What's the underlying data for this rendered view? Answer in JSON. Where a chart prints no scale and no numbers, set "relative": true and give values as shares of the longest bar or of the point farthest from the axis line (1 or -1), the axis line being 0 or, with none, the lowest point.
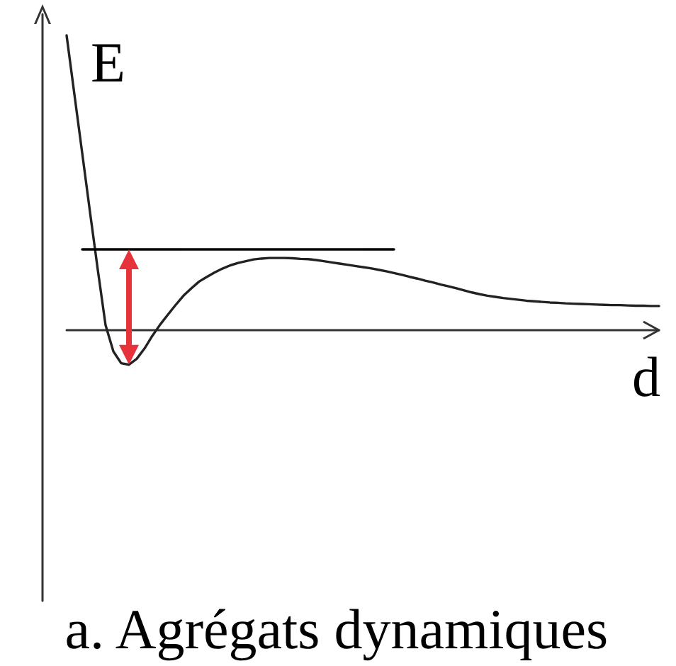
{
  "chart_data": {
    "type": "line",
    "relative": true,
    "xlabel": "d",
    "ylabel": "E",
    "annotations": [
      "a. Agrégats dynamiques"
    ],
    "line_style": "solid",
    "categories": [
      null,
      null,
      null,
      null,
      null,
      null,
      null,
      null,
      null,
      null,
      null,
      null,
      null,
      null,
      null,
      null,
      null,
      null,
      null,
      null,
      null,
      null,
      null,
      null,
      null,
      null,
      null,
      null,
      null,
      null,
      null,
      null,
      null,
      null,
      null,
      null,
      null,
      null,
      null,
      null,
      null,
      null,
      null,
      null,
      null,
      null,
      null,
      null,
      null,
      null,
      null,
      null,
      null,
      null,
      null,
      null,
      null,
      null,
      null,
      null,
      null,
      null,
      null,
      null,
      null,
      null,
      null,
      null,
      null,
      null,
      null,
      null,
      null,
      null,
      null,
      null,
      null
    ],
    "series": [
      {
        "color": "#222222",
        "values": [
          1,
          0.8,
          0.601,
          0.401,
          0.205,
          0.017,
          -0.072,
          -0.112,
          -0.117,
          -0.097,
          -0.062,
          -0.019,
          0.019,
          0.053,
          0.086,
          0.117,
          0.142,
          0.165,
          0.181,
          0.196,
          0.209,
          0.22,
          0.228,
          0.234,
          0.24,
          0.243,
          0.245,
          0.245,
          0.245,
          0.244,
          0.242,
          0.241,
          0.238,
          0.234,
          0.23,
          0.226,
          0.222,
          0.218,
          0.214,
          0.21,
          0.205,
          0.2,
          0.194,
          0.188,
          0.181,
          0.175,
          0.168,
          0.162,
          0.155,
          0.149,
          0.142,
          0.135,
          0.128,
          0.122,
          0.117,
          0.113,
          0.109,
          0.106,
          0.103,
          0.1,
          0.098,
          0.096,
          0.094,
          0.093,
          0.091,
          0.09,
          0.089,
          0.088,
          0.087,
          0.086,
          0.085,
          0.085,
          0.084,
          0.083,
          0.083,
          0.082,
          0.082
        ]
      },
      {
        "color": "#000000",
        "values": [
          null,
          null,
          0.274,
          0.274,
          0.274,
          0.274,
          0.274,
          0.274,
          0.274,
          0.274,
          0.274,
          0.274,
          0.274,
          0.274,
          0.274,
          0.274,
          0.274,
          0.274,
          0.274,
          0.274,
          0.274,
          0.274,
          0.274,
          0.274,
          0.274,
          0.274,
          0.274,
          0.274,
          0.274,
          0.274,
          0.274,
          0.274,
          0.274,
          0.274,
          0.274,
          0.274,
          0.274,
          0.274,
          0.274,
          0.274,
          0.274,
          0.274,
          0.274,
          null,
          null,
          null,
          null,
          null,
          null,
          null,
          null,
          null,
          null,
          null,
          null,
          null,
          null,
          null,
          null,
          null,
          null,
          null,
          null,
          null,
          null,
          null,
          null,
          null,
          null,
          null,
          null,
          null,
          null,
          null,
          null,
          null,
          null
        ]
      }
    ]
  }
}
